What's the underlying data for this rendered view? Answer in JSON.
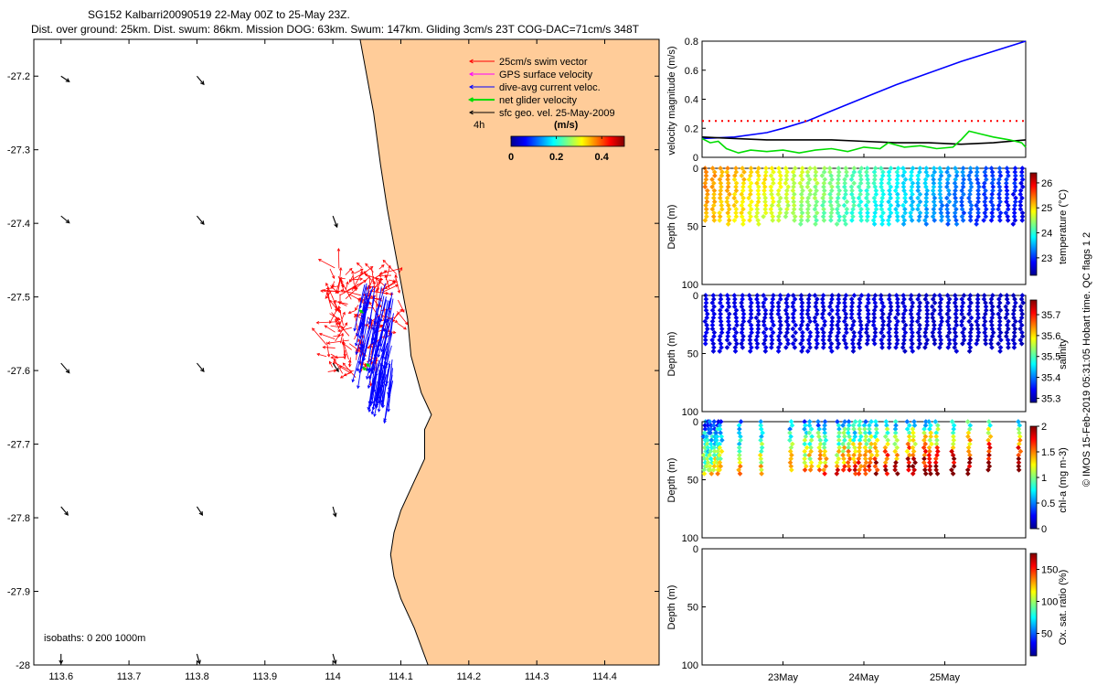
{
  "title": {
    "line1": "SG152 Kalbarri20090519 22-May 00Z to 25-May 23Z.",
    "line2": "Dist. over ground: 25km. Dist. swum: 86km. Mission DOG: 63km. Swum: 147km. Gliding 3cm/s 23T COG-DAC=71cm/s 348T"
  },
  "side_caption": "© IMOS 15-Feb-2019 05:31:05 Hobart time. QC flags 1  2",
  "colors": {
    "land": "#FFCC99",
    "swim": "#FF0000",
    "gps": "#FF00FF",
    "dac": "#0000FF",
    "net": "#00DD00",
    "sfc": "#000000"
  },
  "chart_data": [
    {
      "type": "line",
      "name": "map",
      "xticks": [
        "113.6",
        "113.7",
        "113.8",
        "113.9",
        "114",
        "114.1",
        "114.2",
        "114.3",
        "114.4"
      ],
      "xtick_values": [
        113.6,
        113.7,
        113.8,
        113.9,
        114.0,
        114.1,
        114.2,
        114.3,
        114.4
      ],
      "yticks": [
        "-27.2",
        "-27.3",
        "-27.4",
        "-27.5",
        "-27.6",
        "-27.7",
        "-27.8",
        "-27.9",
        "-28"
      ],
      "ytick_values": [
        -27.2,
        -27.3,
        -27.4,
        -27.5,
        -27.6,
        -27.7,
        -27.8,
        -27.9,
        -28.0
      ],
      "xlim": [
        113.56,
        114.48
      ],
      "ylim": [
        -28.0,
        -27.15
      ],
      "legend": {
        "placement": "top-right",
        "entries": [
          "25cm/s swim vector",
          "GPS surface velocity",
          "dive-avg current veloc.",
          "net glider velocity",
          "sfc geo. vel. 25-May-2009"
        ],
        "scale_label": "4h",
        "colorbar_label": "(m/s)",
        "colorbar_ticks": [
          "0",
          "0.2",
          "0.4"
        ],
        "colorbar_range": [
          0,
          0.5
        ]
      },
      "isobaths_label": "isobaths: 0   200  1000m",
      "coastline": [
        [
          114.04,
          -27.15
        ],
        [
          114.05,
          -27.2
        ],
        [
          114.06,
          -27.25
        ],
        [
          114.07,
          -27.32
        ],
        [
          114.08,
          -27.38
        ],
        [
          114.09,
          -27.43
        ],
        [
          114.1,
          -27.48
        ],
        [
          114.11,
          -27.53
        ],
        [
          114.115,
          -27.58
        ],
        [
          114.13,
          -27.63
        ],
        [
          114.145,
          -27.66
        ],
        [
          114.135,
          -27.68
        ],
        [
          114.135,
          -27.72
        ],
        [
          114.12,
          -27.75
        ],
        [
          114.1,
          -27.79
        ],
        [
          114.09,
          -27.82
        ],
        [
          114.085,
          -27.85
        ],
        [
          114.09,
          -27.88
        ],
        [
          114.1,
          -27.91
        ],
        [
          114.12,
          -27.95
        ],
        [
          114.14,
          -28.0
        ]
      ],
      "surface_geo_vectors": [
        {
          "lon": 113.6,
          "lat": -27.2,
          "u": 0.06,
          "v": -0.04
        },
        {
          "lon": 113.8,
          "lat": -27.2,
          "u": 0.05,
          "v": -0.06
        },
        {
          "lon": 113.6,
          "lat": -27.39,
          "u": 0.06,
          "v": -0.05
        },
        {
          "lon": 113.8,
          "lat": -27.39,
          "u": 0.05,
          "v": -0.06
        },
        {
          "lon": 114.0,
          "lat": -27.39,
          "u": 0.03,
          "v": -0.08
        },
        {
          "lon": 113.6,
          "lat": -27.59,
          "u": 0.06,
          "v": -0.07
        },
        {
          "lon": 113.8,
          "lat": -27.59,
          "u": 0.05,
          "v": -0.06
        },
        {
          "lon": 114.0,
          "lat": -27.59,
          "u": 0.04,
          "v": -0.06
        },
        {
          "lon": 113.6,
          "lat": -27.785,
          "u": 0.05,
          "v": -0.06
        },
        {
          "lon": 113.8,
          "lat": -27.785,
          "u": 0.04,
          "v": -0.06
        },
        {
          "lon": 114.0,
          "lat": -27.785,
          "u": 0.02,
          "v": -0.07
        },
        {
          "lon": 113.6,
          "lat": -27.985,
          "u": 0.0,
          "v": -0.07
        },
        {
          "lon": 113.8,
          "lat": -27.985,
          "u": 0.02,
          "v": -0.07
        },
        {
          "lon": 114.0,
          "lat": -27.985,
          "u": 0.02,
          "v": -0.07
        }
      ],
      "track_region": {
        "lon_min": 114.0,
        "lon_max": 114.1,
        "lat_min": -27.69,
        "lat_max": -27.46
      }
    },
    {
      "type": "line",
      "name": "velocity",
      "ylabel": "velocity magnitude (m/s)",
      "yticks": [
        "0",
        "0.2",
        "0.4",
        "0.6",
        "0.8"
      ],
      "ytick_values": [
        0,
        0.2,
        0.4,
        0.6,
        0.8
      ],
      "ylim": [
        0,
        0.8
      ],
      "xlim": [
        22.0,
        26.0
      ],
      "series": [
        {
          "color": "#0000FF",
          "style": "solid",
          "points": [
            [
              22.0,
              0.13
            ],
            [
              22.4,
              0.14
            ],
            [
              22.8,
              0.17
            ],
            [
              23.0,
              0.2
            ],
            [
              23.3,
              0.25
            ],
            [
              23.6,
              0.32
            ],
            [
              24.0,
              0.41
            ],
            [
              24.4,
              0.5
            ],
            [
              24.8,
              0.58
            ],
            [
              25.2,
              0.66
            ],
            [
              25.6,
              0.73
            ],
            [
              26.0,
              0.8
            ]
          ]
        },
        {
          "color": "#000000",
          "style": "solid",
          "points": [
            [
              22.0,
              0.14
            ],
            [
              22.4,
              0.13
            ],
            [
              22.8,
              0.12
            ],
            [
              23.2,
              0.12
            ],
            [
              23.6,
              0.12
            ],
            [
              24.0,
              0.11
            ],
            [
              24.4,
              0.1
            ],
            [
              24.8,
              0.1
            ],
            [
              25.2,
              0.09
            ],
            [
              25.6,
              0.1
            ],
            [
              26.0,
              0.12
            ]
          ]
        },
        {
          "color": "#00DD00",
          "style": "solid",
          "points": [
            [
              22.0,
              0.13
            ],
            [
              22.1,
              0.1
            ],
            [
              22.2,
              0.11
            ],
            [
              22.3,
              0.06
            ],
            [
              22.45,
              0.03
            ],
            [
              22.6,
              0.05
            ],
            [
              22.8,
              0.04
            ],
            [
              23.0,
              0.05
            ],
            [
              23.2,
              0.03
            ],
            [
              23.4,
              0.05
            ],
            [
              23.6,
              0.06
            ],
            [
              23.8,
              0.04
            ],
            [
              24.0,
              0.07
            ],
            [
              24.2,
              0.06
            ],
            [
              24.3,
              0.1
            ],
            [
              24.5,
              0.07
            ],
            [
              24.7,
              0.08
            ],
            [
              24.9,
              0.06
            ],
            [
              25.1,
              0.07
            ],
            [
              25.2,
              0.12
            ],
            [
              25.3,
              0.18
            ],
            [
              25.45,
              0.16
            ],
            [
              25.6,
              0.14
            ],
            [
              25.8,
              0.12
            ],
            [
              25.95,
              0.1
            ],
            [
              26.0,
              0.07
            ]
          ]
        },
        {
          "color": "#FF0000",
          "style": "dotted",
          "points": [
            [
              22.0,
              0.25
            ],
            [
              26.0,
              0.25
            ]
          ]
        }
      ]
    },
    {
      "type": "scatter",
      "name": "temperature",
      "ylabel": "Depth (m)",
      "colorbar_label": "temperature (°C)",
      "colorbar_ticks": [
        "23",
        "24",
        "25",
        "26"
      ],
      "colorbar_tick_values": [
        23,
        24,
        25,
        26
      ],
      "clim": [
        22.3,
        26.4
      ],
      "yticks": [
        "0",
        "50",
        "100"
      ],
      "ytick_values": [
        0,
        50,
        100
      ],
      "ylim": [
        0,
        100
      ],
      "xlim": [
        22.0,
        26.0
      ],
      "profiles_start": 22.05,
      "profiles_end": 25.95,
      "profile_count": 44,
      "max_depth": 48,
      "value_start": 25.4,
      "value_end": 22.9
    },
    {
      "type": "scatter",
      "name": "salinity",
      "ylabel": "Depth (m)",
      "colorbar_label": "salinity",
      "colorbar_ticks": [
        "35.3",
        "35.4",
        "35.5",
        "35.6",
        "35.7"
      ],
      "colorbar_tick_values": [
        35.3,
        35.4,
        35.5,
        35.6,
        35.7
      ],
      "clim": [
        35.28,
        35.77
      ],
      "yticks": [
        "0",
        "50",
        "100"
      ],
      "ytick_values": [
        0,
        50,
        100
      ],
      "ylim": [
        0,
        100
      ],
      "xlim": [
        22.0,
        26.0
      ],
      "profiles_start": 22.05,
      "profiles_end": 25.95,
      "profile_count": 44,
      "max_depth": 48,
      "value_start": 35.33,
      "value_end": 35.31
    },
    {
      "type": "scatter",
      "name": "chlorophyll",
      "ylabel": "Depth (m)",
      "colorbar_label": "chl-a (mg m-3)",
      "colorbar_ticks": [
        "0",
        "0.5",
        "1",
        "1.5",
        "2"
      ],
      "colorbar_tick_values": [
        0,
        0.5,
        1,
        1.5,
        2
      ],
      "clim": [
        0,
        2
      ],
      "yticks": [
        "0",
        "50",
        "100"
      ],
      "ytick_values": [
        0,
        50,
        100
      ],
      "ylim": [
        0,
        100
      ],
      "xlim": [
        22.0,
        26.0
      ],
      "profile_times": [
        22.03,
        22.07,
        22.11,
        22.15,
        22.19,
        22.23,
        22.47,
        22.73,
        23.1,
        23.28,
        23.34,
        23.45,
        23.52,
        23.68,
        23.75,
        23.82,
        23.88,
        23.95,
        24.02,
        24.08,
        24.15,
        24.28,
        24.4,
        24.55,
        24.62,
        24.75,
        24.82,
        24.9,
        25.1,
        25.3,
        25.55,
        25.92
      ],
      "max_depth": 46,
      "value_start": 0.8,
      "value_end": 1.6
    },
    {
      "type": "scatter",
      "name": "oxygen",
      "ylabel": "Depth (m)",
      "colorbar_label": "Ox. sat. ratio (%)",
      "colorbar_ticks": [
        "50",
        "100",
        "150"
      ],
      "colorbar_tick_values": [
        50,
        100,
        150
      ],
      "clim": [
        15,
        175
      ],
      "yticks": [
        "0",
        "50",
        "100"
      ],
      "ytick_values": [
        0,
        50,
        100
      ],
      "ylim": [
        0,
        100
      ],
      "xlim": [
        22.0,
        26.0
      ]
    }
  ],
  "time_axis": {
    "ticks": [
      "23May",
      "24May",
      "25May"
    ],
    "tick_values": [
      23.0,
      24.0,
      25.0
    ]
  }
}
